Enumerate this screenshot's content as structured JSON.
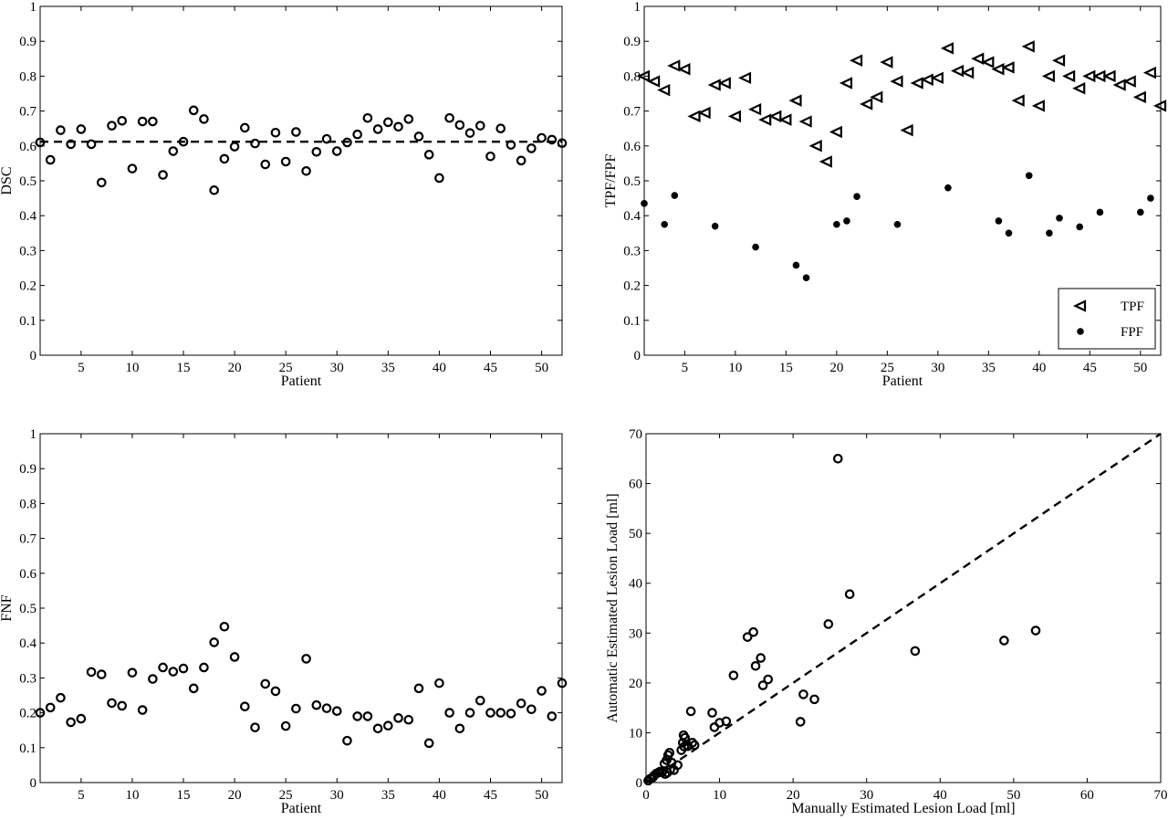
{
  "chart_data": [
    {
      "id": "dsc",
      "type": "scatter",
      "xlabel": "Patient",
      "ylabel": "DSC",
      "xlim": [
        1,
        52
      ],
      "ylim": [
        0,
        1
      ],
      "xticks": [
        5,
        10,
        15,
        20,
        25,
        30,
        35,
        40,
        45,
        50
      ],
      "yticks": [
        0,
        0.1,
        0.2,
        0.3,
        0.4,
        0.5,
        0.6,
        0.7,
        0.8,
        0.9,
        1
      ],
      "reference_line": {
        "style": "dashed",
        "y": 0.612
      },
      "series": [
        {
          "marker": "open-circle",
          "x": [
            1,
            2,
            3,
            4,
            5,
            6,
            7,
            8,
            9,
            10,
            11,
            12,
            13,
            14,
            15,
            16,
            17,
            18,
            19,
            20,
            21,
            22,
            23,
            24,
            25,
            26,
            27,
            28,
            29,
            30,
            31,
            32,
            33,
            34,
            35,
            36,
            37,
            38,
            39,
            40,
            41,
            42,
            43,
            44,
            45,
            46,
            47,
            48,
            49,
            50,
            51,
            52
          ],
          "y": [
            0.61,
            0.56,
            0.645,
            0.605,
            0.648,
            0.605,
            0.495,
            0.658,
            0.672,
            0.535,
            0.67,
            0.67,
            0.517,
            0.585,
            0.612,
            0.702,
            0.677,
            0.473,
            0.563,
            0.598,
            0.652,
            0.607,
            0.547,
            0.638,
            0.555,
            0.64,
            0.528,
            0.583,
            0.62,
            0.585,
            0.61,
            0.633,
            0.68,
            0.648,
            0.668,
            0.655,
            0.677,
            0.627,
            0.575,
            0.508,
            0.68,
            0.66,
            0.637,
            0.658,
            0.57,
            0.65,
            0.603,
            0.558,
            0.593,
            0.623,
            0.618,
            0.608
          ]
        }
      ]
    },
    {
      "id": "tpf-fpf",
      "type": "scatter",
      "xlabel": "Patient",
      "ylabel": "TPF/FPF",
      "xlim": [
        1,
        52
      ],
      "ylim": [
        0,
        1
      ],
      "xticks": [
        5,
        10,
        15,
        20,
        25,
        30,
        35,
        40,
        45,
        50
      ],
      "yticks": [
        0,
        0.1,
        0.2,
        0.3,
        0.4,
        0.5,
        0.6,
        0.7,
        0.8,
        0.9,
        1
      ],
      "legend": {
        "position": "lower-right",
        "entries": [
          "TPF",
          "FPF"
        ]
      },
      "series": [
        {
          "name": "TPF",
          "marker": "left-triangle",
          "x": [
            1,
            2,
            3,
            4,
            5,
            6,
            7,
            8,
            9,
            10,
            11,
            12,
            13,
            14,
            15,
            16,
            17,
            18,
            19,
            20,
            21,
            22,
            23,
            24,
            25,
            26,
            27,
            28,
            29,
            30,
            31,
            32,
            33,
            34,
            35,
            36,
            37,
            38,
            39,
            40,
            41,
            42,
            43,
            44,
            45,
            46,
            47,
            48,
            49,
            50,
            51,
            52
          ],
          "y": [
            0.8,
            0.785,
            0.76,
            0.83,
            0.82,
            0.685,
            0.695,
            0.775,
            0.78,
            0.685,
            0.795,
            0.705,
            0.675,
            0.685,
            0.675,
            0.73,
            0.67,
            0.6,
            0.555,
            0.64,
            0.78,
            0.845,
            0.72,
            0.74,
            0.84,
            0.785,
            0.645,
            0.78,
            0.79,
            0.795,
            0.88,
            0.815,
            0.81,
            0.85,
            0.84,
            0.82,
            0.825,
            0.73,
            0.885,
            0.715,
            0.8,
            0.845,
            0.8,
            0.765,
            0.8,
            0.8,
            0.8,
            0.775,
            0.785,
            0.74,
            0.81,
            0.715
          ]
        },
        {
          "name": "FPF",
          "marker": "filled-dot",
          "x": [
            1,
            3,
            4,
            8,
            12,
            16,
            17,
            20,
            21,
            22,
            26,
            31,
            36,
            37,
            39,
            41,
            42,
            44,
            46,
            50,
            51
          ],
          "y": [
            0.435,
            0.375,
            0.458,
            0.37,
            0.31,
            0.258,
            0.222,
            0.375,
            0.385,
            0.455,
            0.375,
            0.48,
            0.385,
            0.35,
            0.515,
            0.35,
            0.393,
            0.368,
            0.41,
            0.41,
            0.45
          ]
        }
      ]
    },
    {
      "id": "fnf",
      "type": "scatter",
      "xlabel": "Patient",
      "ylabel": "FNF",
      "xlim": [
        1,
        52
      ],
      "ylim": [
        0,
        1
      ],
      "xticks": [
        5,
        10,
        15,
        20,
        25,
        30,
        35,
        40,
        45,
        50
      ],
      "yticks": [
        0,
        0.1,
        0.2,
        0.3,
        0.4,
        0.5,
        0.6,
        0.7,
        0.8,
        0.9,
        1
      ],
      "series": [
        {
          "marker": "open-circle",
          "x": [
            1,
            2,
            3,
            4,
            5,
            6,
            7,
            8,
            9,
            10,
            11,
            12,
            13,
            14,
            15,
            16,
            17,
            18,
            19,
            20,
            21,
            22,
            23,
            24,
            25,
            26,
            27,
            28,
            29,
            30,
            31,
            32,
            33,
            34,
            35,
            36,
            37,
            38,
            39,
            40,
            41,
            42,
            43,
            44,
            45,
            46,
            47,
            48,
            49,
            50,
            51,
            52
          ],
          "y": [
            0.2,
            0.215,
            0.243,
            0.173,
            0.183,
            0.317,
            0.31,
            0.228,
            0.22,
            0.315,
            0.208,
            0.297,
            0.33,
            0.318,
            0.327,
            0.27,
            0.33,
            0.402,
            0.447,
            0.36,
            0.218,
            0.158,
            0.283,
            0.262,
            0.162,
            0.212,
            0.355,
            0.222,
            0.213,
            0.205,
            0.12,
            0.19,
            0.19,
            0.155,
            0.163,
            0.185,
            0.18,
            0.27,
            0.113,
            0.285,
            0.2,
            0.155,
            0.2,
            0.235,
            0.2,
            0.2,
            0.198,
            0.227,
            0.21,
            0.263,
            0.19,
            0.285
          ]
        }
      ]
    },
    {
      "id": "lesion-load",
      "type": "scatter",
      "xlabel": "Manually Estimated Lesion Load [ml]",
      "ylabel": "Automatic Estimated Lesion Load [ml]",
      "xlim": [
        0,
        70
      ],
      "ylim": [
        0,
        70
      ],
      "xticks": [
        0,
        10,
        20,
        30,
        40,
        50,
        60,
        70
      ],
      "yticks": [
        0,
        10,
        20,
        30,
        40,
        50,
        60,
        70
      ],
      "reference_line": {
        "style": "dashed",
        "from": [
          0,
          0
        ],
        "to": [
          70,
          70
        ]
      },
      "series": [
        {
          "marker": "open-circle",
          "x": [
            0.3,
            0.6,
            0.9,
            1.1,
            1.4,
            1.7,
            1.9,
            2.2,
            2.5,
            2.8,
            3.0,
            3.2,
            3.5,
            3.8,
            2.6,
            2.9,
            3.3,
            4.3,
            4.8,
            5.0,
            5.3,
            5.6,
            6.1,
            6.3,
            6.6,
            5.1,
            5.2,
            5.7,
            9.0,
            9.3,
            10.0,
            10.9,
            11.9,
            13.8,
            14.6,
            14.9,
            15.6,
            15.9,
            16.6,
            21.0,
            21.4,
            22.9,
            24.8,
            26.1,
            27.7,
            36.6,
            48.7,
            53.0
          ],
          "y": [
            0.4,
            0.8,
            1.0,
            1.4,
            1.8,
            2.0,
            2.2,
            2.1,
            3.8,
            4.5,
            5.5,
            6.0,
            4.0,
            2.5,
            1.7,
            2.0,
            2.6,
            3.5,
            6.5,
            8.0,
            9.0,
            7.5,
            14.3,
            8.0,
            7.5,
            9.5,
            7.2,
            7.3,
            14.0,
            11.1,
            12.0,
            12.3,
            21.5,
            29.2,
            30.2,
            23.4,
            25.0,
            19.5,
            20.7,
            12.2,
            17.7,
            16.7,
            31.8,
            65.0,
            37.8,
            26.4,
            28.5,
            30.5
          ]
        }
      ]
    }
  ]
}
